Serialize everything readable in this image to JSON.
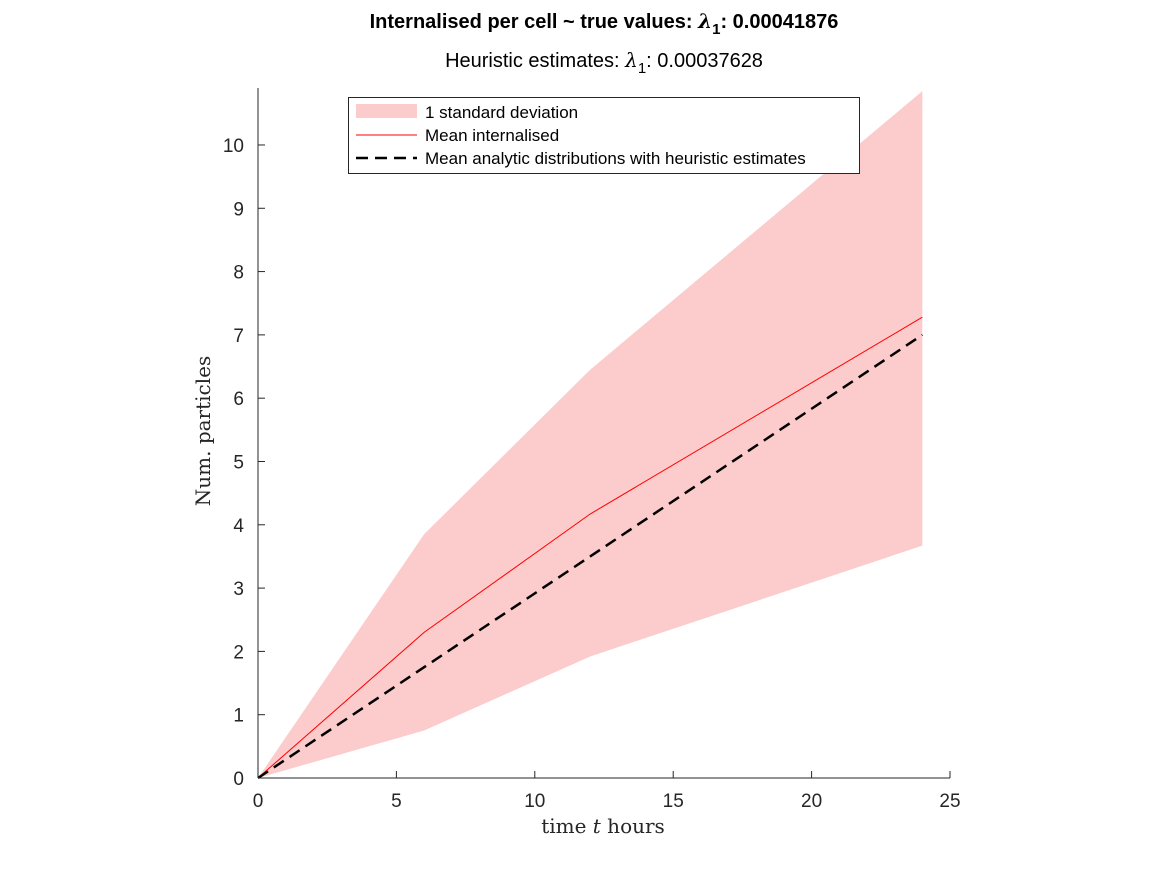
{
  "chart_data": {
    "type": "line",
    "title": {
      "prefix": "Internalised per cell ~ true values:  ",
      "symbol": "λ",
      "subscript": "1",
      "value_text": ": 0.00041876"
    },
    "subtitle": {
      "prefix": "Heuristic estimates: ",
      "symbol": "λ",
      "subscript": "1",
      "value_text": ": 0.00037628"
    },
    "xlabel": {
      "before": "time ",
      "italic": "t",
      "after": " hours"
    },
    "ylabel": "Num.  particles",
    "xlim": [
      0,
      25
    ],
    "ylim": [
      0,
      10.9
    ],
    "xticks": [
      "0",
      "5",
      "10",
      "15",
      "20",
      "25"
    ],
    "yticks": [
      "0",
      "1",
      "2",
      "3",
      "4",
      "5",
      "6",
      "7",
      "8",
      "9",
      "10"
    ],
    "grid": false,
    "legend_position": "top-center",
    "x": [
      0,
      6,
      12,
      24
    ],
    "band": {
      "name": "1 standard deviation",
      "color": "#fccbcb",
      "lower": [
        0,
        0.75,
        1.92,
        3.67
      ],
      "upper": [
        0,
        3.85,
        6.45,
        10.85
      ]
    },
    "series": [
      {
        "name": "Mean internalised",
        "color": "#ff0000",
        "style": "solid",
        "values": [
          0,
          2.3,
          4.17,
          7.28
        ]
      },
      {
        "name": "Mean analytic distributions with heuristic estimates",
        "color": "#000000",
        "style": "dashed",
        "values": [
          0,
          1.75,
          3.5,
          7.0
        ]
      }
    ]
  }
}
